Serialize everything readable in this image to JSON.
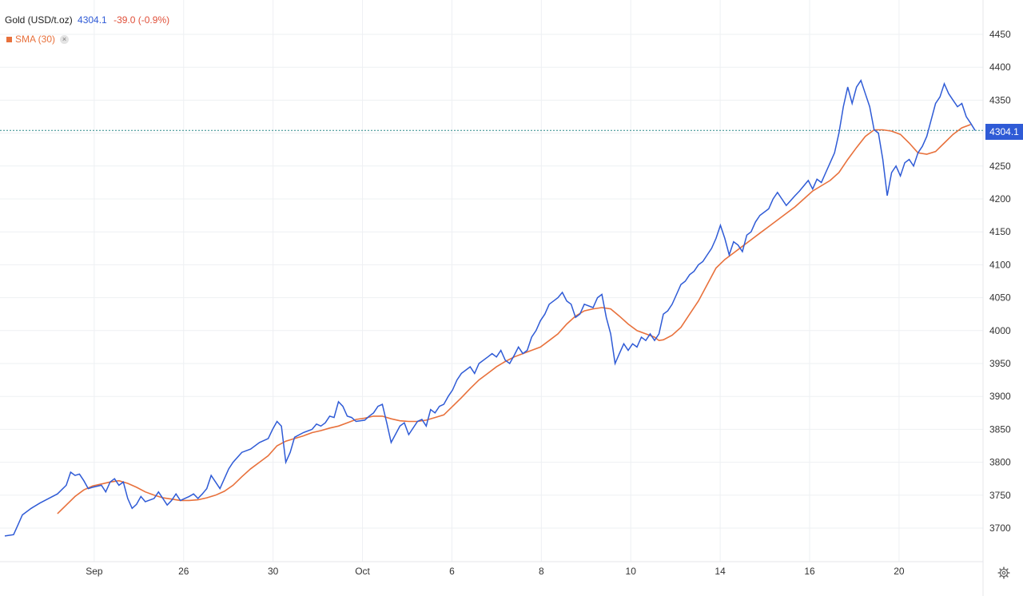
{
  "legend": {
    "instrument": "Gold (USD/t.oz)",
    "price": "4304.1",
    "change": "-39.0 (-0.9%)"
  },
  "sma_legend": {
    "label": "SMA (30)",
    "close_symbol": "×"
  },
  "price_tag": "4304.1",
  "settings_icon": "gear-icon",
  "colors": {
    "price_line": "#2f5bd6",
    "sma_line": "#e8713c",
    "change_negative": "#e0503a",
    "grid": "#eef0f3",
    "last_price_line": "#2f8a8a"
  },
  "chart_data": {
    "type": "line",
    "x_ticks": [
      {
        "x": 10,
        "label": "Sep"
      },
      {
        "x": 20,
        "label": "26"
      },
      {
        "x": 30,
        "label": "30"
      },
      {
        "x": 40,
        "label": "Oct"
      },
      {
        "x": 50,
        "label": "6"
      },
      {
        "x": 60,
        "label": "8"
      },
      {
        "x": 70,
        "label": "10"
      },
      {
        "x": 80,
        "label": "14"
      },
      {
        "x": 90,
        "label": "16"
      },
      {
        "x": 100,
        "label": "20"
      }
    ],
    "y_ticks": [
      3700,
      3750,
      3800,
      3850,
      3900,
      3950,
      4000,
      4050,
      4100,
      4150,
      4200,
      4250,
      4350,
      4400,
      4450
    ],
    "ylim": [
      3650,
      4500
    ],
    "xlim": [
      0,
      108.5
    ],
    "last_price": 4304.1,
    "grid": true,
    "series": [
      {
        "name": "Gold (USD/t.oz)",
        "points": [
          [
            0,
            3688
          ],
          [
            1,
            3690
          ],
          [
            1.5,
            3705
          ],
          [
            2,
            3720
          ],
          [
            3,
            3730
          ],
          [
            4,
            3738
          ],
          [
            5,
            3745
          ],
          [
            6,
            3752
          ],
          [
            7,
            3765
          ],
          [
            7.5,
            3785
          ],
          [
            8,
            3780
          ],
          [
            8.5,
            3782
          ],
          [
            9,
            3772
          ],
          [
            9.5,
            3760
          ],
          [
            10,
            3762
          ],
          [
            11,
            3765
          ],
          [
            11.5,
            3755
          ],
          [
            12,
            3770
          ],
          [
            12.5,
            3775
          ],
          [
            13,
            3765
          ],
          [
            13.5,
            3770
          ],
          [
            14,
            3745
          ],
          [
            14.5,
            3730
          ],
          [
            15,
            3736
          ],
          [
            15.5,
            3748
          ],
          [
            16,
            3740
          ],
          [
            17,
            3745
          ],
          [
            17.5,
            3755
          ],
          [
            18,
            3745
          ],
          [
            18.5,
            3735
          ],
          [
            19,
            3742
          ],
          [
            19.5,
            3752
          ],
          [
            20,
            3742
          ],
          [
            21,
            3748
          ],
          [
            21.5,
            3752
          ],
          [
            22,
            3745
          ],
          [
            22.5,
            3752
          ],
          [
            23,
            3760
          ],
          [
            23.5,
            3780
          ],
          [
            24,
            3770
          ],
          [
            24.5,
            3760
          ],
          [
            25,
            3775
          ],
          [
            25.5,
            3790
          ],
          [
            26,
            3800
          ],
          [
            27,
            3815
          ],
          [
            28,
            3820
          ],
          [
            29,
            3830
          ],
          [
            30,
            3836
          ],
          [
            30.5,
            3850
          ],
          [
            31,
            3862
          ],
          [
            31.5,
            3855
          ],
          [
            32,
            3800
          ],
          [
            32.5,
            3815
          ],
          [
            33,
            3838
          ],
          [
            34,
            3845
          ],
          [
            35,
            3850
          ],
          [
            35.5,
            3858
          ],
          [
            36,
            3855
          ],
          [
            36.5,
            3860
          ],
          [
            37,
            3870
          ],
          [
            37.5,
            3868
          ],
          [
            38,
            3892
          ],
          [
            38.5,
            3885
          ],
          [
            39,
            3870
          ],
          [
            39.5,
            3868
          ],
          [
            40,
            3862
          ],
          [
            41,
            3864
          ],
          [
            41.5,
            3870
          ],
          [
            42,
            3875
          ],
          [
            42.5,
            3885
          ],
          [
            43,
            3888
          ],
          [
            43.5,
            3860
          ],
          [
            44,
            3830
          ],
          [
            45,
            3855
          ],
          [
            45.5,
            3860
          ],
          [
            46,
            3842
          ],
          [
            47,
            3862
          ],
          [
            47.5,
            3865
          ],
          [
            48,
            3855
          ],
          [
            48.5,
            3880
          ],
          [
            49,
            3875
          ],
          [
            49.5,
            3885
          ],
          [
            50,
            3888
          ],
          [
            50.5,
            3900
          ],
          [
            51,
            3910
          ],
          [
            51.5,
            3925
          ],
          [
            52,
            3935
          ],
          [
            53,
            3945
          ],
          [
            53.5,
            3935
          ],
          [
            54,
            3950
          ],
          [
            55,
            3960
          ],
          [
            55.5,
            3965
          ],
          [
            56,
            3960
          ],
          [
            56.5,
            3970
          ],
          [
            57,
            3955
          ],
          [
            57.5,
            3950
          ],
          [
            58,
            3962
          ],
          [
            58.5,
            3975
          ],
          [
            59,
            3965
          ],
          [
            59.5,
            3970
          ],
          [
            60,
            3990
          ],
          [
            60.5,
            4000
          ],
          [
            61,
            4015
          ],
          [
            61.5,
            4025
          ],
          [
            62,
            4040
          ],
          [
            62.5,
            4045
          ],
          [
            63,
            4050
          ],
          [
            63.5,
            4058
          ],
          [
            64,
            4045
          ],
          [
            64.5,
            4040
          ],
          [
            65,
            4020
          ],
          [
            65.5,
            4025
          ],
          [
            66,
            4040
          ],
          [
            67,
            4035
          ],
          [
            67.5,
            4050
          ],
          [
            68,
            4055
          ],
          [
            68.5,
            4020
          ],
          [
            69,
            3995
          ],
          [
            69.5,
            3950
          ],
          [
            70,
            3965
          ],
          [
            70.5,
            3980
          ],
          [
            71,
            3970
          ],
          [
            71.5,
            3980
          ],
          [
            72,
            3975
          ],
          [
            72.5,
            3990
          ],
          [
            73,
            3985
          ],
          [
            73.5,
            3995
          ],
          [
            74,
            3985
          ],
          [
            74.5,
            3995
          ],
          [
            75,
            4025
          ],
          [
            75.5,
            4030
          ],
          [
            76,
            4040
          ],
          [
            76.5,
            4055
          ],
          [
            77,
            4070
          ],
          [
            77.5,
            4075
          ],
          [
            78,
            4085
          ],
          [
            78.5,
            4090
          ],
          [
            79,
            4100
          ],
          [
            79.5,
            4105
          ],
          [
            80,
            4115
          ],
          [
            80.5,
            4125
          ],
          [
            81,
            4140
          ],
          [
            81.5,
            4160
          ],
          [
            82,
            4140
          ],
          [
            82.5,
            4115
          ],
          [
            83,
            4135
          ],
          [
            83.5,
            4130
          ],
          [
            84,
            4120
          ],
          [
            84.5,
            4145
          ],
          [
            85,
            4150
          ],
          [
            85.5,
            4165
          ],
          [
            86,
            4175
          ],
          [
            87,
            4185
          ],
          [
            87.5,
            4200
          ],
          [
            88,
            4210
          ],
          [
            88.5,
            4200
          ],
          [
            89,
            4190
          ],
          [
            90,
            4205
          ],
          [
            90.5,
            4212
          ],
          [
            91,
            4220
          ],
          [
            91.5,
            4228
          ],
          [
            92,
            4215
          ],
          [
            92.5,
            4230
          ],
          [
            93,
            4225
          ],
          [
            93.5,
            4240
          ],
          [
            94,
            4255
          ],
          [
            94.5,
            4270
          ],
          [
            95,
            4300
          ],
          [
            95.5,
            4340
          ],
          [
            96,
            4370
          ],
          [
            96.5,
            4345
          ],
          [
            97,
            4370
          ],
          [
            97.5,
            4380
          ],
          [
            98,
            4360
          ],
          [
            98.5,
            4340
          ],
          [
            99,
            4305
          ],
          [
            99.5,
            4300
          ],
          [
            100,
            4260
          ],
          [
            100.5,
            4205
          ],
          [
            101,
            4240
          ],
          [
            101.5,
            4250
          ],
          [
            102,
            4235
          ],
          [
            102.5,
            4255
          ],
          [
            103,
            4260
          ],
          [
            103.5,
            4250
          ],
          [
            104,
            4270
          ],
          [
            104.5,
            4280
          ],
          [
            105,
            4295
          ],
          [
            105.5,
            4320
          ],
          [
            106,
            4345
          ],
          [
            106.5,
            4355
          ],
          [
            107,
            4375
          ],
          [
            107.5,
            4360
          ],
          [
            108,
            4350
          ],
          [
            108.5,
            4340
          ],
          [
            109,
            4345
          ],
          [
            109.5,
            4325
          ],
          [
            110,
            4315
          ],
          [
            110.5,
            4304.1
          ]
        ]
      },
      {
        "name": "SMA (30)",
        "points": [
          [
            6,
            3722
          ],
          [
            7,
            3735
          ],
          [
            8,
            3748
          ],
          [
            9,
            3758
          ],
          [
            10,
            3764
          ],
          [
            11,
            3767
          ],
          [
            12,
            3770
          ],
          [
            13,
            3772
          ],
          [
            14,
            3768
          ],
          [
            15,
            3762
          ],
          [
            16,
            3755
          ],
          [
            17,
            3750
          ],
          [
            18,
            3746
          ],
          [
            19,
            3744
          ],
          [
            20,
            3742
          ],
          [
            21,
            3742
          ],
          [
            22,
            3743
          ],
          [
            23,
            3746
          ],
          [
            24,
            3750
          ],
          [
            25,
            3756
          ],
          [
            26,
            3765
          ],
          [
            27,
            3778
          ],
          [
            28,
            3790
          ],
          [
            29,
            3800
          ],
          [
            30,
            3810
          ],
          [
            31,
            3825
          ],
          [
            32,
            3832
          ],
          [
            33,
            3836
          ],
          [
            34,
            3840
          ],
          [
            35,
            3845
          ],
          [
            36,
            3848
          ],
          [
            37,
            3852
          ],
          [
            38,
            3855
          ],
          [
            39,
            3860
          ],
          [
            40,
            3865
          ],
          [
            41,
            3867
          ],
          [
            42,
            3870
          ],
          [
            43,
            3870
          ],
          [
            44,
            3866
          ],
          [
            45,
            3863
          ],
          [
            46,
            3862
          ],
          [
            47,
            3862
          ],
          [
            48,
            3864
          ],
          [
            49,
            3868
          ],
          [
            50,
            3872
          ],
          [
            51,
            3885
          ],
          [
            52,
            3898
          ],
          [
            53,
            3912
          ],
          [
            54,
            3925
          ],
          [
            55,
            3935
          ],
          [
            56,
            3945
          ],
          [
            57,
            3953
          ],
          [
            58,
            3960
          ],
          [
            59,
            3965
          ],
          [
            60,
            3970
          ],
          [
            61,
            3975
          ],
          [
            62,
            3985
          ],
          [
            63,
            3995
          ],
          [
            64,
            4010
          ],
          [
            65,
            4022
          ],
          [
            66,
            4030
          ],
          [
            67,
            4033
          ],
          [
            68,
            4035
          ],
          [
            69,
            4033
          ],
          [
            70,
            4022
          ],
          [
            71,
            4010
          ],
          [
            72,
            4000
          ],
          [
            73,
            3995
          ],
          [
            74,
            3990
          ],
          [
            74.5,
            3985
          ],
          [
            75,
            3986
          ],
          [
            76,
            3993
          ],
          [
            77,
            4005
          ],
          [
            78,
            4025
          ],
          [
            79,
            4045
          ],
          [
            80,
            4070
          ],
          [
            81,
            4095
          ],
          [
            82,
            4108
          ],
          [
            83,
            4118
          ],
          [
            84,
            4128
          ],
          [
            85,
            4138
          ],
          [
            86,
            4148
          ],
          [
            87,
            4158
          ],
          [
            88,
            4168
          ],
          [
            89,
            4178
          ],
          [
            90,
            4188
          ],
          [
            91,
            4200
          ],
          [
            92,
            4212
          ],
          [
            93,
            4220
          ],
          [
            94,
            4228
          ],
          [
            95,
            4240
          ],
          [
            96,
            4260
          ],
          [
            97,
            4278
          ],
          [
            98,
            4295
          ],
          [
            99,
            4305
          ],
          [
            100,
            4305
          ],
          [
            101,
            4303
          ],
          [
            102,
            4298
          ],
          [
            103,
            4285
          ],
          [
            104,
            4270
          ],
          [
            105,
            4268
          ],
          [
            106,
            4272
          ],
          [
            107,
            4285
          ],
          [
            108,
            4298
          ],
          [
            109,
            4308
          ],
          [
            110,
            4313
          ]
        ]
      }
    ]
  }
}
